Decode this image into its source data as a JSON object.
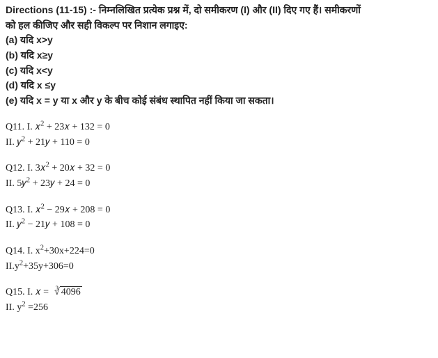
{
  "directions": {
    "label": "Directions (11-15) :- ",
    "text_line1": "निम्नलिखित प्रत्येक प्रश्न में, दो समीकरण (I) और (II) दिए गए हैं। समीकरणों",
    "text_line2": "को हल कीजिए और सही विकल्प पर निशान लगाइए:"
  },
  "options": {
    "a": "(a) यदि x>y",
    "b": "(b) यदि x≥y",
    "c": "(c) यदि x<y",
    "d": "(d) यदि x ≤y",
    "e": "(e) यदि x = y या x और y के बीच कोई संबंध स्थापित नहीं किया जा सकता।"
  },
  "q11": {
    "l1_prefix": "Q11. I. ",
    "l1_expr_a": "𝑥",
    "l1_sup": "2",
    "l1_expr_b": " + 23𝑥 + 132 = 0",
    "l2_prefix": "II. ",
    "l2_expr_a": "𝑦",
    "l2_sup": "2",
    "l2_expr_b": " + 21𝑦 + 110 = 0"
  },
  "q12": {
    "l1_prefix": "Q12. I. ",
    "l1_expr_a": "3𝑥",
    "l1_sup": "2",
    "l1_expr_b": " + 20𝑥 + 32 = 0",
    "l2_prefix": "II. ",
    "l2_expr_a": "5𝑦",
    "l2_sup": "2",
    "l2_expr_b": " + 23𝑦 + 24 = 0"
  },
  "q13": {
    "l1_prefix": "Q13. I. ",
    "l1_expr_a": "𝑥",
    "l1_sup": "2",
    "l1_expr_b": " − 29𝑥 + 208 = 0",
    "l2_prefix": "II. ",
    "l2_expr_a": "𝑦",
    "l2_sup": "2",
    "l2_expr_b": " − 21𝑦 + 108 = 0"
  },
  "q14": {
    "l1_prefix": "Q14. I. ",
    "l1_expr_a": "x",
    "l1_sup": "2",
    "l1_expr_b": "+30x+224=0",
    "l2_prefix": "II.",
    "l2_expr_a": "y",
    "l2_sup": "2",
    "l2_expr_b": "+35y+306=0"
  },
  "q15": {
    "l1_prefix": "Q15. I. ",
    "l1_var": "𝑥 = ",
    "l1_deg": "3",
    "l1_sqrt_sym": "√",
    "l1_radicand": "4096",
    "l2_prefix": "II. ",
    "l2_expr_a": "y",
    "l2_sup": "2",
    "l2_expr_b": " =256"
  }
}
